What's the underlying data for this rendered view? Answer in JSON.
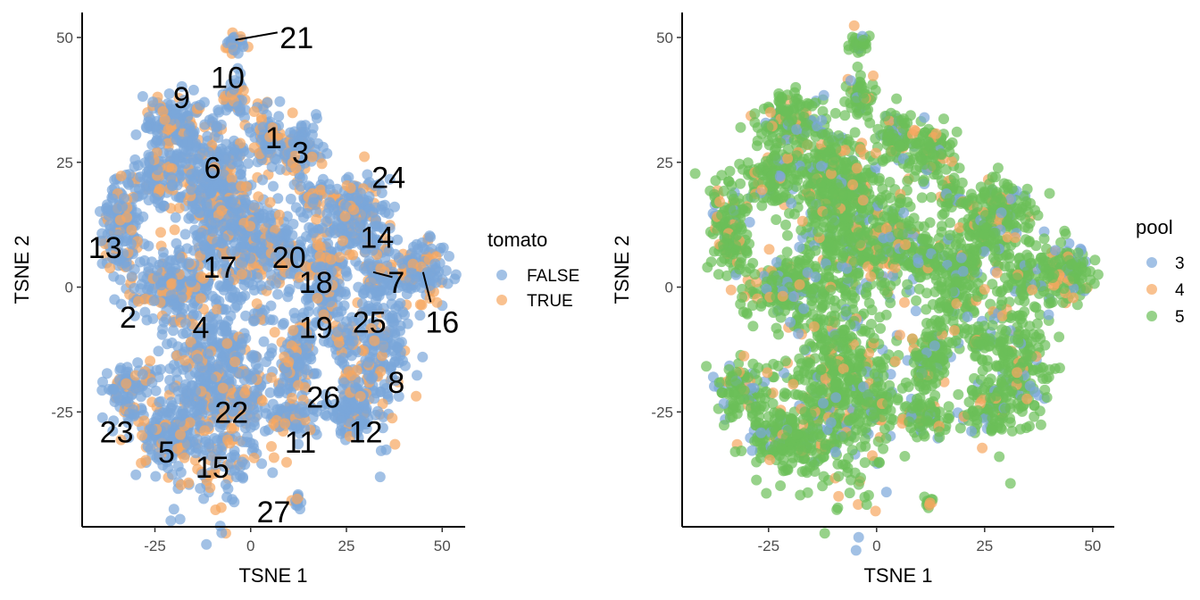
{
  "chart_data": [
    {
      "type": "scatter",
      "id": "left",
      "xlabel": "TSNE 1",
      "ylabel": "TSNE 2",
      "xlim": [
        -44,
        56
      ],
      "ylim": [
        -48,
        55
      ],
      "xticks": [
        -25,
        0,
        25,
        50
      ],
      "yticks": [
        -25,
        0,
        25,
        50
      ],
      "xtick_labels": [
        "-25",
        "0",
        "25",
        "50"
      ],
      "ytick_labels": [
        "-25",
        "0",
        "25",
        "50"
      ],
      "grid": false,
      "legend": {
        "title": "tomato",
        "placement": "right",
        "entries": [
          {
            "label": "FALSE",
            "color": "#7aa6da"
          },
          {
            "label": "TRUE",
            "color": "#f6a65f"
          }
        ]
      },
      "point_colors": [
        "#7aa6da",
        "#f6a65f"
      ],
      "labels": [
        {
          "text": "21",
          "x": 12,
          "y": 50
        },
        {
          "text": "10",
          "x": -6,
          "y": 42
        },
        {
          "text": "9",
          "x": -18,
          "y": 38
        },
        {
          "text": "1",
          "x": 6,
          "y": 30
        },
        {
          "text": "3",
          "x": 13,
          "y": 27
        },
        {
          "text": "6",
          "x": -10,
          "y": 24
        },
        {
          "text": "24",
          "x": 36,
          "y": 22
        },
        {
          "text": "14",
          "x": 33,
          "y": 10
        },
        {
          "text": "13",
          "x": -38,
          "y": 8
        },
        {
          "text": "20",
          "x": 10,
          "y": 6
        },
        {
          "text": "17",
          "x": -8,
          "y": 4
        },
        {
          "text": "7",
          "x": 38,
          "y": 1
        },
        {
          "text": "18",
          "x": 17,
          "y": 1
        },
        {
          "text": "16",
          "x": 50,
          "y": -7
        },
        {
          "text": "2",
          "x": -32,
          "y": -6
        },
        {
          "text": "4",
          "x": -13,
          "y": -8
        },
        {
          "text": "25",
          "x": 31,
          "y": -7
        },
        {
          "text": "19",
          "x": 17,
          "y": -8
        },
        {
          "text": "8",
          "x": 38,
          "y": -19
        },
        {
          "text": "26",
          "x": 19,
          "y": -22
        },
        {
          "text": "22",
          "x": -5,
          "y": -25
        },
        {
          "text": "23",
          "x": -35,
          "y": -29
        },
        {
          "text": "12",
          "x": 30,
          "y": -29
        },
        {
          "text": "11",
          "x": 13,
          "y": -31
        },
        {
          "text": "5",
          "x": -22,
          "y": -33
        },
        {
          "text": "15",
          "x": -10,
          "y": -36
        },
        {
          "text": "27",
          "x": 6,
          "y": -45
        }
      ]
    },
    {
      "type": "scatter",
      "id": "right",
      "xlabel": "TSNE 1",
      "ylabel": "TSNE 2",
      "xlim": [
        -45,
        55
      ],
      "ylim": [
        -48,
        55
      ],
      "xticks": [
        -25,
        0,
        25,
        50
      ],
      "yticks": [
        -25,
        0,
        25,
        50
      ],
      "xtick_labels": [
        "-25",
        "0",
        "25",
        "50"
      ],
      "ytick_labels": [
        "-25",
        "0",
        "25",
        "50"
      ],
      "grid": false,
      "legend": {
        "title": "pool",
        "placement": "right",
        "entries": [
          {
            "label": "3",
            "color": "#7aa6da"
          },
          {
            "label": "4",
            "color": "#f6a65f"
          },
          {
            "label": "5",
            "color": "#6bbf59"
          }
        ]
      },
      "point_colors": [
        "#6bbf59",
        "#7aa6da",
        "#f6a65f"
      ]
    }
  ],
  "clusters": [
    {
      "x": -4,
      "y": 49,
      "sx": 1.2,
      "sy": 1.2,
      "n": 30
    },
    {
      "x": -4,
      "y": 38,
      "sx": 1.5,
      "sy": 2,
      "n": 50
    },
    {
      "x": -20,
      "y": 33,
      "sx": 4,
      "sy": 3,
      "n": 150
    },
    {
      "x": -10,
      "y": 22,
      "sx": 5,
      "sy": 5,
      "n": 300
    },
    {
      "x": -4,
      "y": 10,
      "sx": 7,
      "sy": 6,
      "n": 400
    },
    {
      "x": -24,
      "y": 22,
      "sx": 3,
      "sy": 3,
      "n": 100
    },
    {
      "x": 4,
      "y": 30,
      "sx": 2,
      "sy": 3,
      "n": 80
    },
    {
      "x": 12,
      "y": 27,
      "sx": 3,
      "sy": 3,
      "n": 100
    },
    {
      "x": 17,
      "y": 18,
      "sx": 2,
      "sy": 2,
      "n": 40
    },
    {
      "x": -34,
      "y": 12,
      "sx": 2.5,
      "sy": 5,
      "n": 150
    },
    {
      "x": -21,
      "y": 0,
      "sx": 5,
      "sy": 3,
      "n": 200
    },
    {
      "x": 6,
      "y": 9,
      "sx": 2,
      "sy": 2,
      "n": 60
    },
    {
      "x": 11,
      "y": 6,
      "sx": 2,
      "sy": 3,
      "n": 60
    },
    {
      "x": 19,
      "y": 2,
      "sx": 3,
      "sy": 6,
      "n": 200
    },
    {
      "x": 13,
      "y": -12,
      "sx": 2,
      "sy": 3,
      "n": 60
    },
    {
      "x": 28,
      "y": 14,
      "sx": 4,
      "sy": 4,
      "n": 200
    },
    {
      "x": 43,
      "y": 3,
      "sx": 4,
      "sy": 3,
      "n": 150
    },
    {
      "x": 33,
      "y": 3,
      "sx": 2,
      "sy": 3,
      "n": 60
    },
    {
      "x": 33,
      "y": -14,
      "sx": 4,
      "sy": 7,
      "n": 200
    },
    {
      "x": 24,
      "y": -11,
      "sx": 1.5,
      "sy": 2,
      "n": 40
    },
    {
      "x": -9,
      "y": -20,
      "sx": 7,
      "sy": 10,
      "n": 600
    },
    {
      "x": -32,
      "y": -21,
      "sx": 3,
      "sy": 3,
      "n": 100
    },
    {
      "x": -22,
      "y": -30,
      "sx": 4,
      "sy": 3,
      "n": 150
    },
    {
      "x": 0,
      "y": -23,
      "sx": 1.5,
      "sy": 2,
      "n": 40
    },
    {
      "x": 11,
      "y": -17,
      "sx": 2,
      "sy": 3,
      "n": 60
    },
    {
      "x": 12,
      "y": -26,
      "sx": 3,
      "sy": 2,
      "n": 80
    },
    {
      "x": 26,
      "y": -24,
      "sx": 3,
      "sy": 3,
      "n": 100
    },
    {
      "x": 12,
      "y": -43,
      "sx": 0.5,
      "sy": 0.6,
      "n": 12
    }
  ],
  "leader_lines": [
    {
      "x1": -4,
      "y1": 49.5,
      "x2": 7,
      "y2": 51
    },
    {
      "x1": 32,
      "y1": 3,
      "x2": 37,
      "y2": 2
    },
    {
      "x1": 45,
      "y1": 3,
      "x2": 47,
      "y2": -3
    }
  ]
}
